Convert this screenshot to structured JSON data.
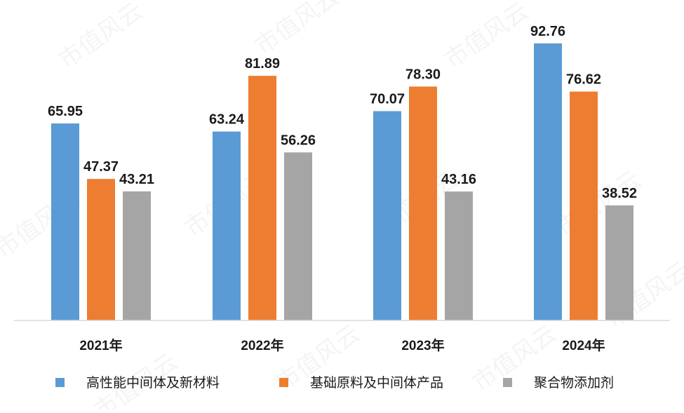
{
  "chart_data": {
    "type": "bar",
    "title": "",
    "xlabel": "",
    "ylabel": "",
    "categories": [
      "2021年",
      "2022年",
      "2023年",
      "2024年"
    ],
    "series": [
      {
        "name": "高性能中间体及新材料",
        "values": [
          65.95,
          63.24,
          70.07,
          92.76
        ],
        "color": "#5B9BD5"
      },
      {
        "name": "基础原料及中间体产品",
        "values": [
          47.37,
          81.89,
          78.3,
          76.62
        ],
        "color": "#ED7D31"
      },
      {
        "name": "聚合物添加剂",
        "values": [
          43.21,
          56.26,
          43.16,
          38.52
        ],
        "color": "#A5A5A5"
      }
    ],
    "value_labels": [
      [
        "65.95",
        "63.24",
        "70.07",
        "92.76"
      ],
      [
        "47.37",
        "81.89",
        "78.30",
        "76.62"
      ],
      [
        "43.21",
        "56.26",
        "43.16",
        "38.52"
      ]
    ],
    "ylim": [
      0,
      100
    ],
    "y_axis_visible": false,
    "grid": false,
    "legend": "bottom"
  },
  "watermark_text": "市值风云"
}
